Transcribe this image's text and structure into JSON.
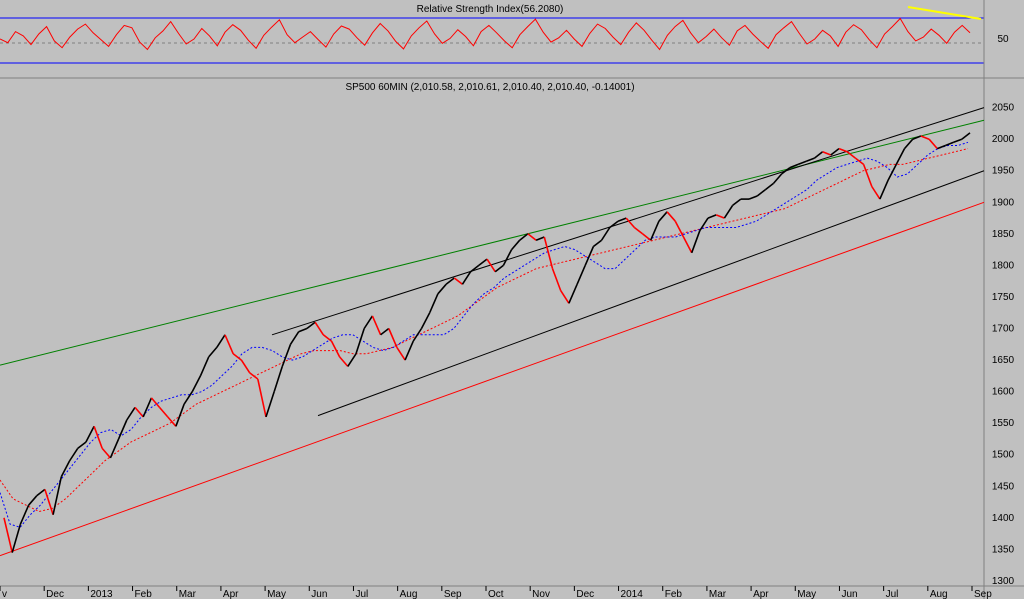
{
  "chart_data": [
    {
      "type": "line",
      "title": "Relative Strength Index(56.2080)",
      "y_ticks": [
        50
      ],
      "ylim": [
        0,
        100
      ],
      "reference_lines": [
        80,
        50,
        20
      ],
      "series": [
        {
          "values": [
            50,
            44,
            62,
            55,
            41,
            58,
            70,
            47,
            36,
            53,
            66,
            74,
            60,
            49,
            38,
            57,
            72,
            68,
            45,
            33,
            52,
            63,
            78,
            59,
            42,
            50,
            67,
            55,
            39,
            61,
            73,
            64,
            48,
            35,
            56,
            69,
            81,
            57,
            44,
            53,
            62,
            49,
            37,
            58,
            71,
            66,
            52,
            40,
            60,
            75,
            63,
            46,
            34,
            55,
            68,
            79,
            58,
            43,
            51,
            65,
            54,
            39,
            62,
            72,
            60,
            47,
            36,
            57,
            70,
            82,
            61,
            45,
            52,
            64,
            50,
            38,
            59,
            74,
            67,
            53,
            41,
            61,
            76,
            64,
            48,
            33,
            56,
            70,
            80,
            60,
            44,
            54,
            66,
            52,
            40,
            63,
            72,
            58,
            46,
            35,
            57,
            68,
            78,
            59,
            42,
            50,
            64,
            55,
            38,
            61,
            73,
            65,
            49,
            36,
            58,
            70,
            83,
            62,
            47,
            53,
            66,
            56,
            43,
            61,
            72,
            60
          ]
        }
      ],
      "trendline_color": "#ffff00"
    },
    {
      "type": "line",
      "title": "SP500 60MIN (2,010.58, 2,010.61, 2,010.40, 2,010.40, -0.14001)",
      "x_ticks": [
        "v",
        "Dec",
        "2013",
        "Feb",
        "Mar",
        "Apr",
        "May",
        "Jun",
        "Jul",
        "Aug",
        "Sep",
        "Oct",
        "Nov",
        "Dec",
        "2014",
        "Feb",
        "Mar",
        "Apr",
        "May",
        "Jun",
        "Jul",
        "Aug",
        "Sep"
      ],
      "y_ticks": [
        2050,
        2000,
        1950,
        1900,
        1850,
        1800,
        1750,
        1700,
        1650,
        1600,
        1550,
        1500,
        1450,
        1400,
        1350,
        1300
      ],
      "ylim": [
        1292,
        2070
      ],
      "price": [
        1400,
        1345,
        1390,
        1420,
        1435,
        1445,
        1405,
        1465,
        1490,
        1510,
        1520,
        1545,
        1510,
        1495,
        1525,
        1555,
        1575,
        1560,
        1590,
        1575,
        1560,
        1545,
        1580,
        1600,
        1625,
        1655,
        1670,
        1690,
        1660,
        1650,
        1630,
        1620,
        1560,
        1600,
        1640,
        1675,
        1695,
        1700,
        1710,
        1690,
        1680,
        1655,
        1640,
        1660,
        1700,
        1720,
        1690,
        1700,
        1670,
        1650,
        1680,
        1700,
        1725,
        1755,
        1770,
        1780,
        1770,
        1790,
        1800,
        1810,
        1790,
        1800,
        1825,
        1840,
        1850,
        1840,
        1845,
        1795,
        1760,
        1740,
        1770,
        1800,
        1830,
        1840,
        1860,
        1870,
        1875,
        1860,
        1850,
        1840,
        1870,
        1885,
        1870,
        1845,
        1820,
        1855,
        1875,
        1880,
        1875,
        1895,
        1905,
        1905,
        1910,
        1920,
        1930,
        1945,
        1955,
        1960,
        1965,
        1970,
        1980,
        1975,
        1985,
        1980,
        1970,
        1960,
        1925,
        1905,
        1935,
        1960,
        1985,
        2000,
        2005,
        2000,
        1985,
        1990,
        1995,
        2000,
        2010
      ],
      "ma_fast": [
        1440,
        1390,
        1385,
        1405,
        1420,
        1440,
        1460,
        1480,
        1500,
        1520,
        1535,
        1540,
        1530,
        1540,
        1560,
        1575,
        1585,
        1590,
        1595,
        1595,
        1600,
        1610,
        1625,
        1640,
        1660,
        1670,
        1670,
        1665,
        1655,
        1650,
        1655,
        1665,
        1675,
        1685,
        1690,
        1690,
        1680,
        1670,
        1665,
        1670,
        1680,
        1690,
        1690,
        1690,
        1690,
        1700,
        1720,
        1740,
        1755,
        1765,
        1780,
        1790,
        1800,
        1810,
        1820,
        1825,
        1830,
        1825,
        1815,
        1805,
        1795,
        1795,
        1810,
        1825,
        1840,
        1845,
        1845,
        1845,
        1850,
        1855,
        1860,
        1860,
        1860,
        1860,
        1865,
        1870,
        1880,
        1890,
        1900,
        1910,
        1920,
        1935,
        1945,
        1955,
        1960,
        1965,
        1970,
        1965,
        1955,
        1940,
        1945,
        1960,
        1975,
        1985,
        1990,
        1990,
        1995
      ],
      "ma_slow": [
        1460,
        1430,
        1420,
        1410,
        1415,
        1430,
        1450,
        1470,
        1490,
        1505,
        1520,
        1530,
        1540,
        1550,
        1565,
        1580,
        1590,
        1600,
        1610,
        1620,
        1630,
        1640,
        1650,
        1660,
        1665,
        1665,
        1665,
        1660,
        1660,
        1665,
        1670,
        1680,
        1690,
        1700,
        1710,
        1720,
        1735,
        1750,
        1765,
        1775,
        1785,
        1795,
        1800,
        1805,
        1810,
        1815,
        1820,
        1825,
        1830,
        1835,
        1840,
        1845,
        1850,
        1855,
        1860,
        1865,
        1870,
        1875,
        1880,
        1885,
        1890,
        1900,
        1910,
        1920,
        1930,
        1940,
        1950,
        1955,
        1960,
        1960,
        1965,
        1970,
        1975,
        1980,
        1985
      ],
      "channel": {
        "upper": [
          [
            1690,
            2050
          ]
        ],
        "lower": [
          [
            1562,
            1950
          ]
        ]
      },
      "trendlines": [
        {
          "color": "#008000",
          "from": 1642,
          "to": 2030
        },
        {
          "color": "#ff0000",
          "from": 1340,
          "to": 1900
        }
      ],
      "colors": {
        "price": "#000000",
        "price_down": "#ff0000",
        "ma_fast": "#0000ff",
        "ma_slow": "#ff0000",
        "channel": "#000000"
      }
    }
  ]
}
